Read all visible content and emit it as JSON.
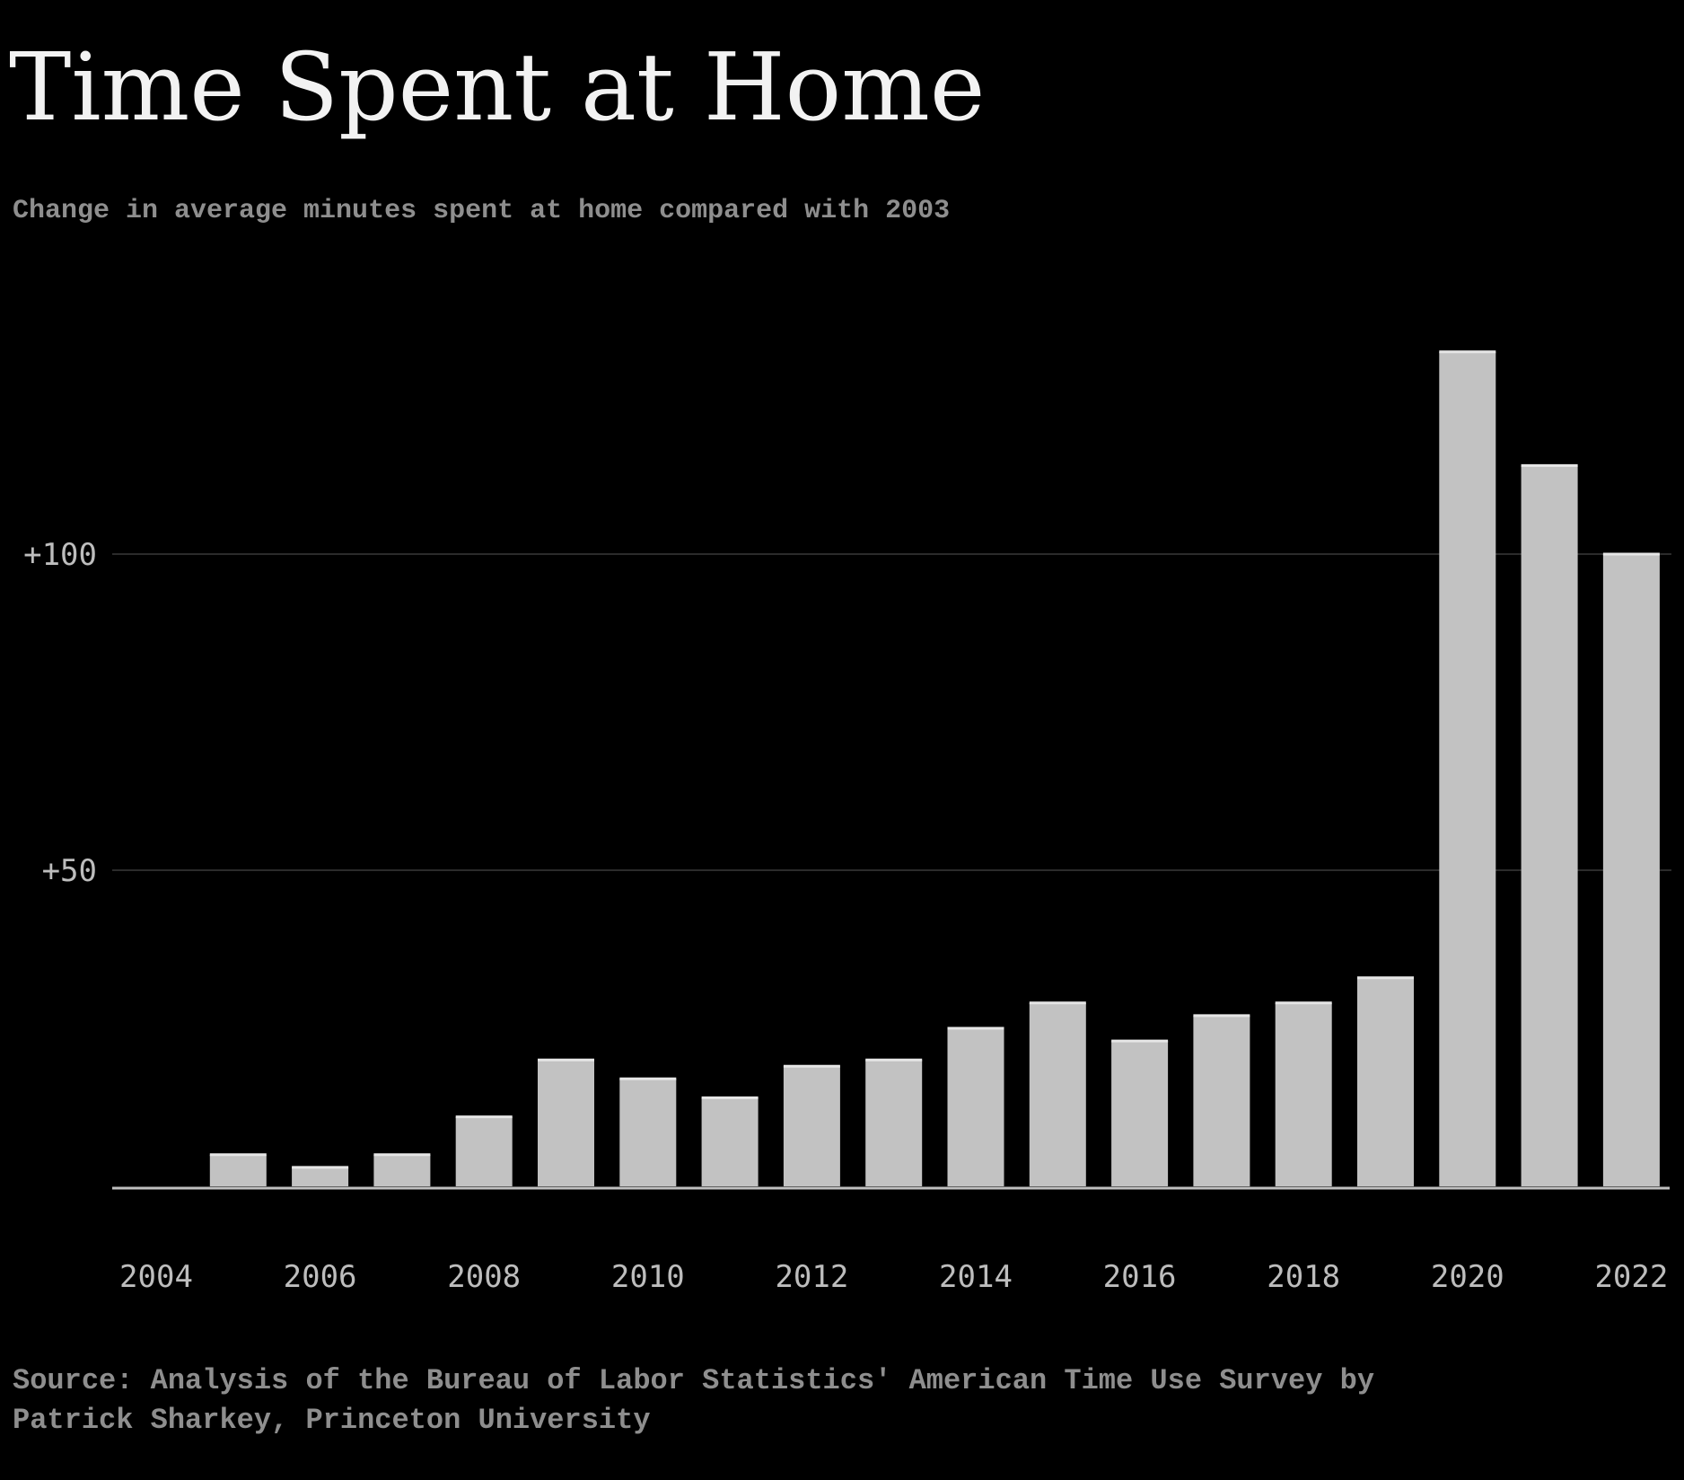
{
  "header": {
    "title": "Time Spent at Home",
    "subtitle": "Change in average minutes spent at home compared with 2003"
  },
  "footer": {
    "source_line1": "Source: Analysis of the Bureau of Labor Statistics' American Time Use Survey by",
    "source_line2": "Patrick Sharkey, Princeton University"
  },
  "colors": {
    "background": "#000000",
    "bar": "#c2c2c2",
    "gridline": "#2b2b2b",
    "baseline": "#bfbfbf"
  },
  "chart_data": {
    "type": "bar",
    "title": "Time Spent at Home",
    "subtitle": "Change in average minutes spent at home compared with 2003",
    "xlabel": "",
    "ylabel": "",
    "ylim": [
      0,
      135
    ],
    "grid": true,
    "categories": [
      "2004",
      "2005",
      "2006",
      "2007",
      "2008",
      "2009",
      "2010",
      "2011",
      "2012",
      "2013",
      "2014",
      "2015",
      "2016",
      "2017",
      "2018",
      "2019",
      "2020",
      "2021",
      "2022"
    ],
    "values": [
      0,
      5,
      3,
      5,
      11,
      20,
      17,
      14,
      19,
      20,
      25,
      29,
      23,
      27,
      29,
      33,
      132,
      114,
      100
    ],
    "x_tick_labels": [
      "2004",
      "2006",
      "2008",
      "2010",
      "2012",
      "2014",
      "2016",
      "2018",
      "2020",
      "2022"
    ],
    "y_ticks": [
      {
        "value": 50,
        "label": "+50"
      },
      {
        "value": 100,
        "label": "+100"
      }
    ]
  }
}
